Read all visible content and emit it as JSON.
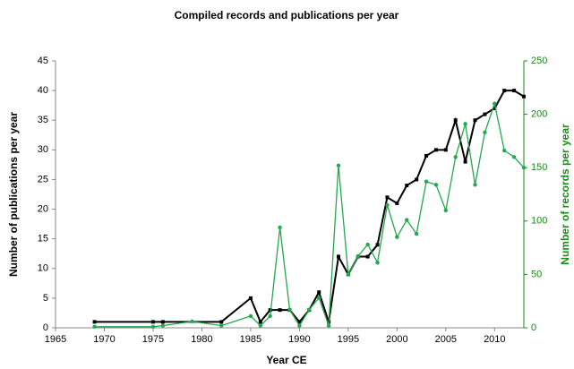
{
  "chart_data": {
    "type": "line",
    "title": "Compiled records and publications per year",
    "x_label": "Year CE",
    "y_label": "Number of publications per year",
    "y2_label": "Number of records per year",
    "xlim": [
      1965,
      2013
    ],
    "xticks": [
      1965,
      1970,
      1975,
      1980,
      1985,
      1990,
      1995,
      2000,
      2005,
      2010
    ],
    "ylim": [
      0,
      45
    ],
    "yticks": [
      0,
      5,
      10,
      15,
      20,
      25,
      30,
      35,
      40,
      45
    ],
    "y2lim": [
      0,
      250
    ],
    "y2ticks": [
      0,
      50,
      100,
      150,
      200,
      250
    ],
    "y2_color": "#1a8a1a",
    "series": [
      {
        "name": "Publications",
        "color": "#000000",
        "marker": "square",
        "x": [
          1969,
          1975,
          1976,
          1982,
          1985,
          1986,
          1987,
          1988,
          1989,
          1990,
          1991,
          1992,
          1993,
          1994,
          1995,
          1996,
          1997,
          1998,
          1999,
          2000,
          2001,
          2002,
          2003,
          2004,
          2005,
          2006,
          2007,
          2008,
          2009,
          2010,
          2011,
          2012,
          2013
        ],
        "values": [
          1,
          1,
          1,
          1,
          5,
          1,
          3,
          3,
          3,
          1,
          3,
          6,
          1,
          12,
          9,
          12,
          12,
          14,
          22,
          21,
          24,
          25,
          29,
          30,
          30,
          35,
          28,
          35,
          36,
          37,
          40,
          40,
          39
        ]
      },
      {
        "name": "Records",
        "color": "#22a84f",
        "marker": "circle",
        "axis": "y2",
        "x": [
          1969,
          1975,
          1976,
          1979,
          1982,
          1985,
          1986,
          1987,
          1988,
          1989,
          1990,
          1991,
          1992,
          1993,
          1994,
          1995,
          1996,
          1997,
          1998,
          1999,
          2000,
          2001,
          2002,
          2003,
          2004,
          2005,
          2006,
          2007,
          2008,
          2009,
          2010,
          2011,
          2012,
          2013
        ],
        "values": [
          1,
          1,
          2,
          6,
          2,
          11,
          2,
          11,
          94,
          17,
          2,
          17,
          28,
          2,
          152,
          50,
          67,
          78,
          61,
          115,
          85,
          101,
          88,
          137,
          134,
          110,
          160,
          191,
          134,
          183,
          210,
          166,
          160,
          150
        ]
      }
    ]
  }
}
